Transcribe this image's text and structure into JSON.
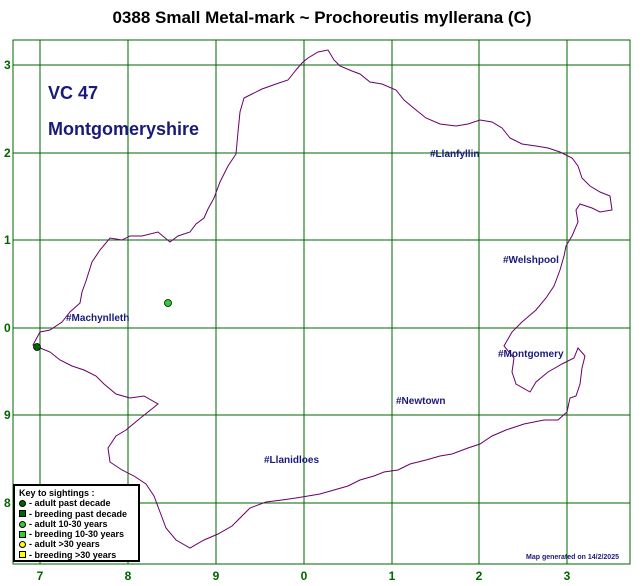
{
  "title": "0388 Small Metal-mark ~ Prochoreutis myllerana (C)",
  "region": {
    "vc": "VC 47",
    "county": "Montgomeryshire"
  },
  "x_axis_labels": [
    "7",
    "8",
    "9",
    "0",
    "1",
    "2",
    "3"
  ],
  "y_axis_labels": [
    "3",
    "2",
    "1",
    "0",
    "9",
    "8"
  ],
  "places": [
    {
      "name": "#Llanfyllin"
    },
    {
      "name": "#Welshpool"
    },
    {
      "name": "#Machynlleth"
    },
    {
      "name": "#Montgomery"
    },
    {
      "name": "#Newtown"
    },
    {
      "name": "#Llanidloes"
    }
  ],
  "key": {
    "title": "Key to sightings :",
    "items": [
      {
        "label": "- adult past decade",
        "shape": "circle",
        "color": "#006400"
      },
      {
        "label": "- breeding past decade",
        "shape": "square",
        "color": "#006400"
      },
      {
        "label": "- adult 10-30 years",
        "shape": "circle",
        "color": "#33cc33"
      },
      {
        "label": "- breeding 10-30 years",
        "shape": "square",
        "color": "#33cc33"
      },
      {
        "label": "- adult >30 years",
        "shape": "circle",
        "color": "#ffff00"
      },
      {
        "label": "- breeding >30 years",
        "shape": "square",
        "color": "#ffff00"
      }
    ]
  },
  "sightings": [
    {
      "category": "adult past decade",
      "color": "#006400"
    },
    {
      "category": "adult 10-30 years",
      "color": "#33cc33"
    }
  ],
  "footer": "Map generated on 14/2/2025",
  "colors": {
    "grid": "#006400",
    "boundary": "#6a006a",
    "label": "#1a1a7a"
  }
}
